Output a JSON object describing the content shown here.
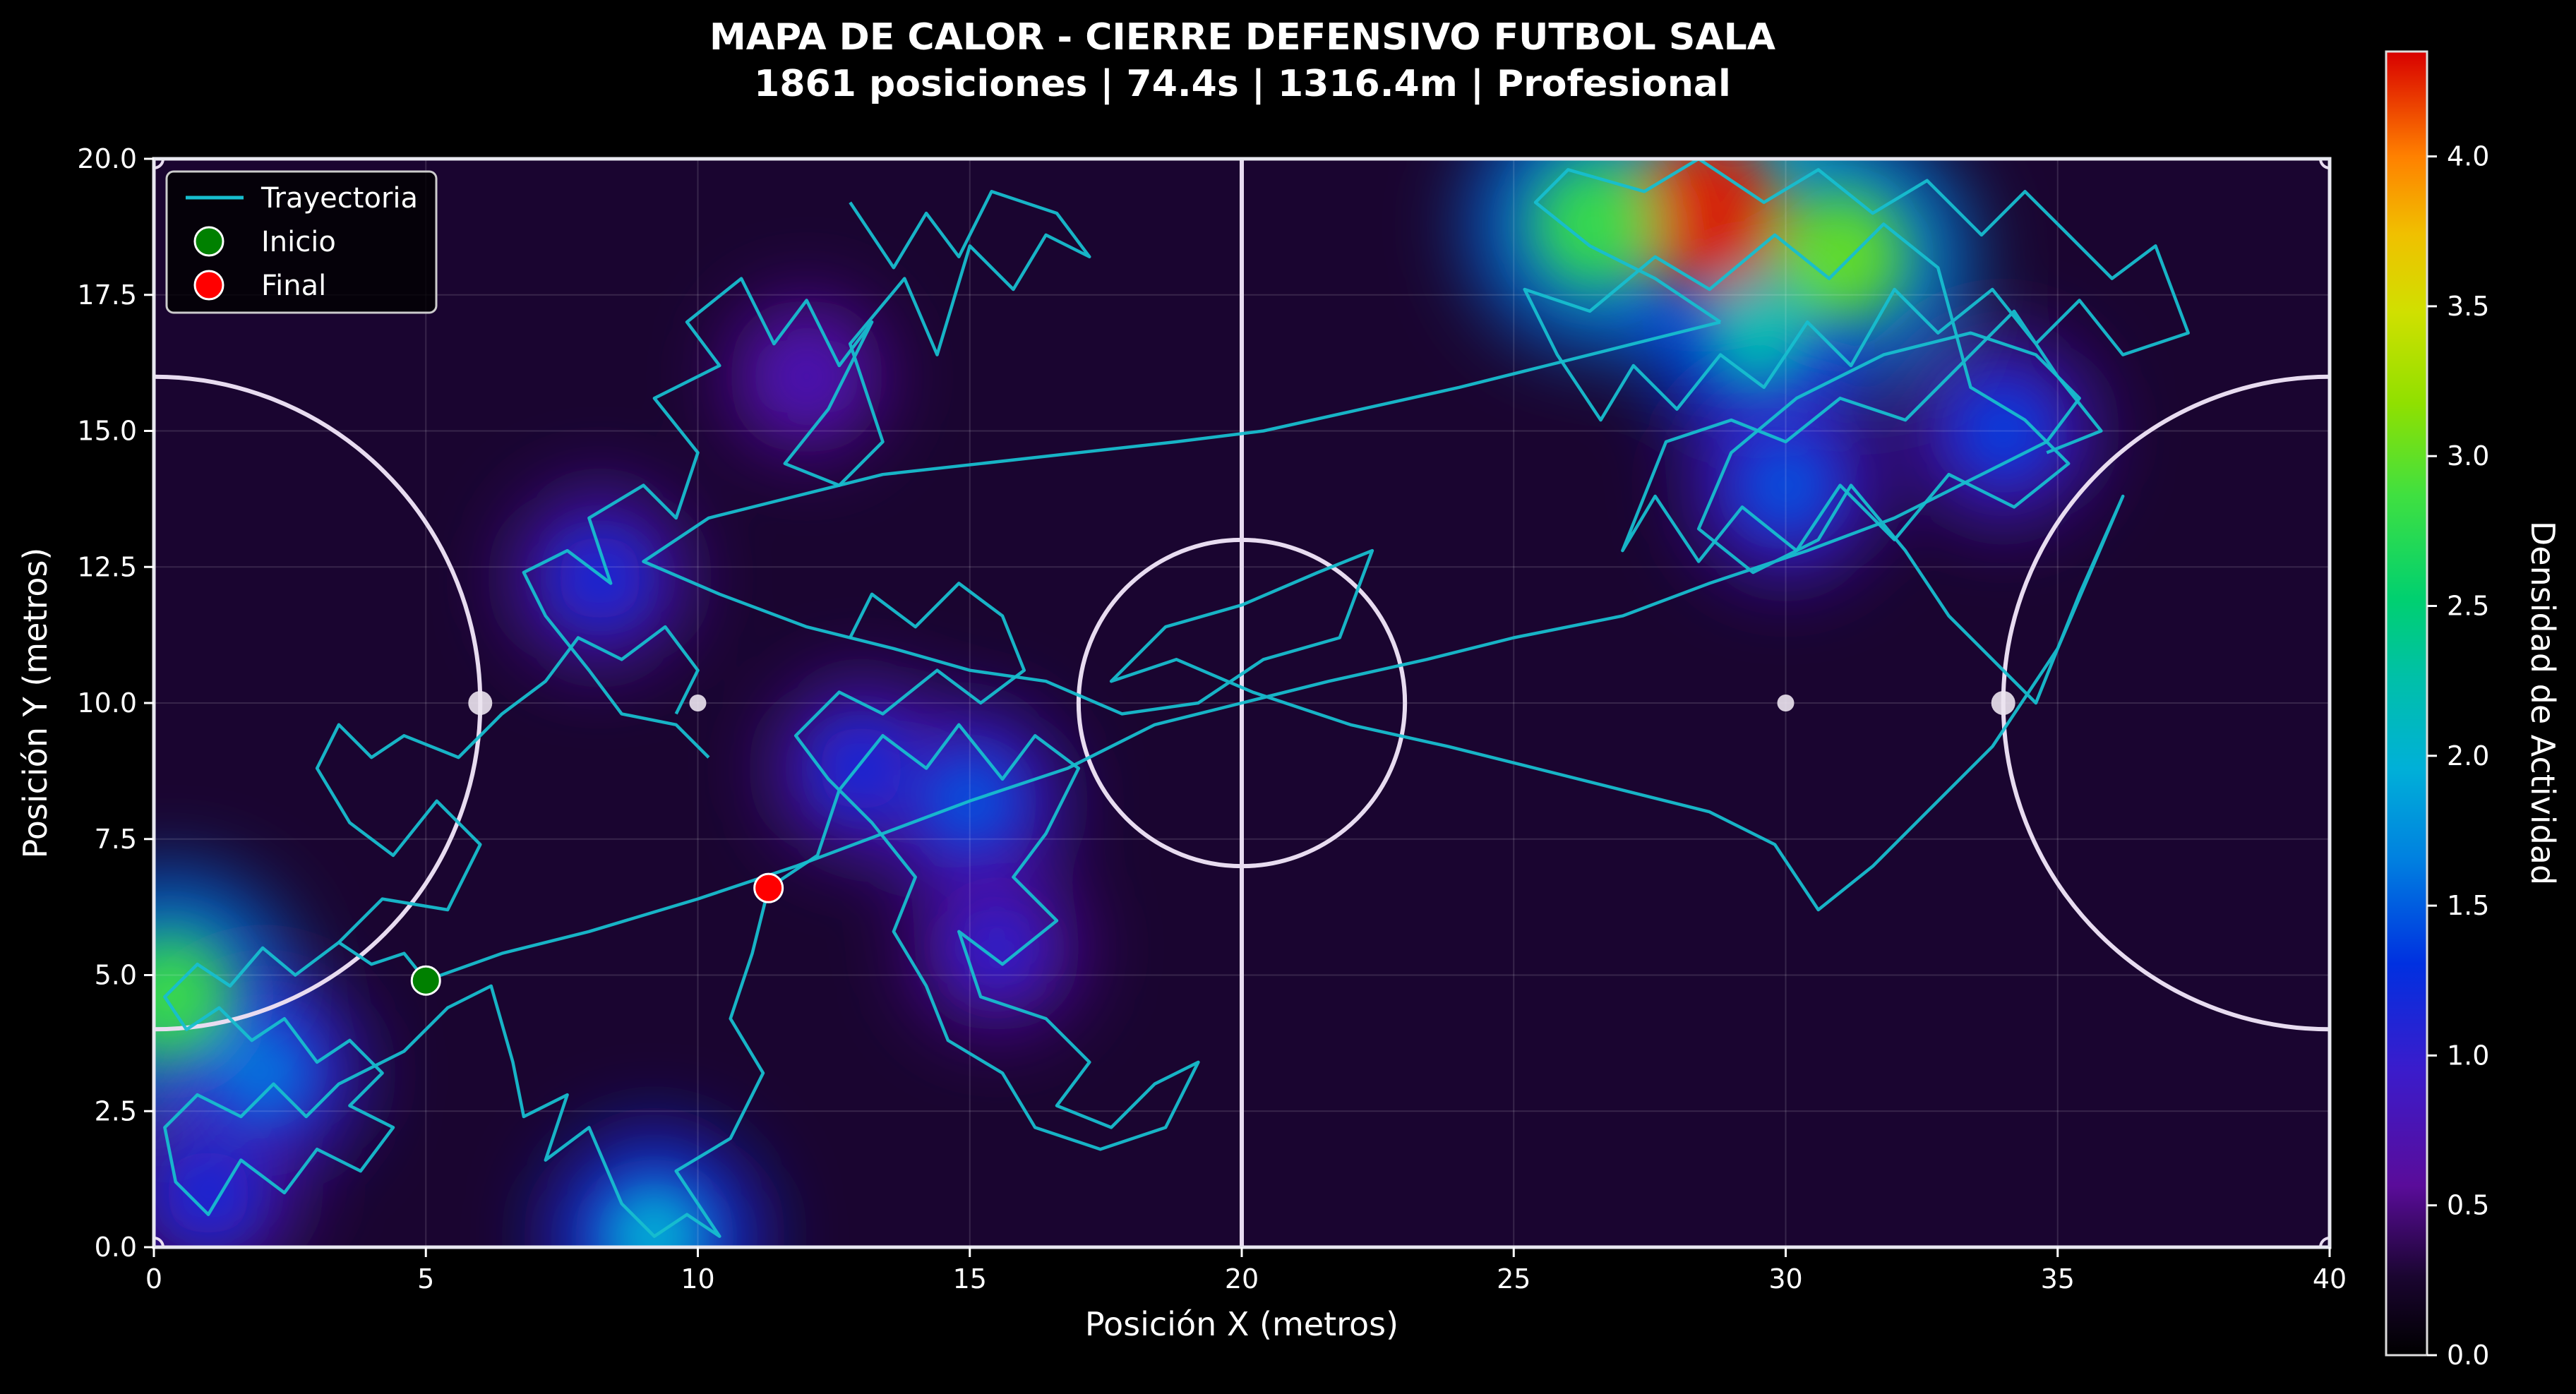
{
  "chart_data": {
    "type": "heatmap",
    "title": "MAPA DE CALOR - CIERRE DEFENSIVO FUTBOL SALA",
    "subtitle": "1861 posiciones | 74.4s | 1316.4m | Profesional",
    "xlabel": "Posición X (metros)",
    "ylabel": "Posición Y (metros)",
    "xlim": [
      0,
      40
    ],
    "ylim": [
      0,
      20
    ],
    "xticks": [
      "0",
      "5",
      "10",
      "15",
      "20",
      "25",
      "30",
      "35",
      "40"
    ],
    "yticks": [
      "0.0",
      "2.5",
      "5.0",
      "7.5",
      "10.0",
      "12.5",
      "15.0",
      "17.5",
      "20.0"
    ],
    "grid": true,
    "colormap": "nipy_spectral",
    "colorbar": {
      "label": "Densidad de Actividad",
      "range": [
        0,
        4.35
      ],
      "ticks": [
        "0.0",
        "0.5",
        "1.0",
        "1.5",
        "2.0",
        "2.5",
        "3.0",
        "3.5",
        "4.0"
      ]
    },
    "legend": {
      "placement": "upper-left",
      "entries": [
        {
          "label": "Trayectoria",
          "color": "#17becf",
          "marker": "line"
        },
        {
          "label": "Inicio",
          "color": "#008000",
          "marker": "circle"
        },
        {
          "label": "Final",
          "color": "#ff0000",
          "marker": "circle"
        }
      ]
    },
    "start_point": {
      "x": 5.0,
      "y": 4.9
    },
    "end_point": {
      "x": 11.3,
      "y": 6.6
    },
    "density_hotspots": [
      {
        "x": 28.5,
        "y": 19.0,
        "intensity": 4.3
      },
      {
        "x": 31.0,
        "y": 18.2,
        "intensity": 3.2
      },
      {
        "x": 26.5,
        "y": 18.8,
        "intensity": 3.0
      },
      {
        "x": 29.5,
        "y": 16.8,
        "intensity": 2.3
      },
      {
        "x": 30.0,
        "y": 14.0,
        "intensity": 1.5
      },
      {
        "x": 34.0,
        "y": 15.0,
        "intensity": 1.4
      },
      {
        "x": 0.3,
        "y": 4.6,
        "intensity": 3.0
      },
      {
        "x": 2.0,
        "y": 3.2,
        "intensity": 1.7
      },
      {
        "x": 1.0,
        "y": 1.0,
        "intensity": 1.2
      },
      {
        "x": 15.0,
        "y": 8.2,
        "intensity": 1.5
      },
      {
        "x": 13.0,
        "y": 8.8,
        "intensity": 1.2
      },
      {
        "x": 15.5,
        "y": 5.5,
        "intensity": 1.0
      },
      {
        "x": 9.2,
        "y": 0.2,
        "intensity": 2.1
      },
      {
        "x": 8.2,
        "y": 12.3,
        "intensity": 1.2
      },
      {
        "x": 12.0,
        "y": 16.0,
        "intensity": 0.7
      }
    ],
    "trajectory": [
      [
        5.0,
        4.9
      ],
      [
        4.6,
        5.4
      ],
      [
        4.0,
        5.2
      ],
      [
        3.4,
        5.6
      ],
      [
        2.6,
        5.0
      ],
      [
        2.0,
        5.5
      ],
      [
        1.4,
        4.8
      ],
      [
        0.8,
        5.2
      ],
      [
        0.2,
        4.6
      ],
      [
        0.6,
        4.0
      ],
      [
        1.2,
        4.4
      ],
      [
        1.8,
        3.8
      ],
      [
        2.4,
        4.2
      ],
      [
        3.0,
        3.4
      ],
      [
        3.6,
        3.8
      ],
      [
        4.2,
        3.2
      ],
      [
        3.6,
        2.6
      ],
      [
        4.4,
        2.2
      ],
      [
        3.8,
        1.4
      ],
      [
        3.0,
        1.8
      ],
      [
        2.4,
        1.0
      ],
      [
        1.6,
        1.6
      ],
      [
        1.0,
        0.6
      ],
      [
        0.4,
        1.2
      ],
      [
        0.2,
        2.2
      ],
      [
        0.8,
        2.8
      ],
      [
        1.6,
        2.4
      ],
      [
        2.2,
        3.0
      ],
      [
        2.8,
        2.4
      ],
      [
        3.4,
        3.0
      ],
      [
        4.6,
        3.6
      ],
      [
        5.4,
        4.4
      ],
      [
        6.2,
        4.8
      ],
      [
        6.6,
        3.4
      ],
      [
        6.8,
        2.4
      ],
      [
        7.6,
        2.8
      ],
      [
        7.2,
        1.6
      ],
      [
        8.0,
        2.2
      ],
      [
        8.6,
        0.8
      ],
      [
        9.2,
        0.2
      ],
      [
        9.8,
        0.6
      ],
      [
        10.4,
        0.2
      ],
      [
        9.6,
        1.4
      ],
      [
        10.6,
        2.0
      ],
      [
        11.2,
        3.2
      ],
      [
        10.6,
        4.2
      ],
      [
        11.0,
        5.4
      ],
      [
        11.3,
        6.6
      ]
    ],
    "trajectory_upper_left": [
      [
        10.2,
        9.0
      ],
      [
        9.6,
        9.6
      ],
      [
        8.6,
        9.8
      ],
      [
        8.0,
        10.6
      ],
      [
        7.2,
        11.6
      ],
      [
        6.8,
        12.4
      ],
      [
        7.6,
        12.8
      ],
      [
        8.4,
        12.2
      ],
      [
        8.0,
        13.4
      ],
      [
        9.0,
        14.0
      ],
      [
        9.6,
        13.4
      ],
      [
        10.0,
        14.6
      ],
      [
        9.2,
        15.6
      ],
      [
        10.4,
        16.2
      ],
      [
        9.8,
        17.0
      ],
      [
        10.8,
        17.8
      ],
      [
        11.4,
        16.6
      ],
      [
        12.0,
        17.4
      ],
      [
        12.6,
        16.2
      ],
      [
        13.2,
        17.0
      ],
      [
        12.4,
        15.4
      ],
      [
        11.6,
        14.4
      ],
      [
        12.6,
        14.0
      ],
      [
        13.4,
        14.8
      ],
      [
        12.8,
        16.6
      ],
      [
        13.8,
        17.8
      ],
      [
        14.4,
        16.4
      ],
      [
        15.0,
        18.4
      ],
      [
        15.8,
        17.6
      ],
      [
        16.4,
        18.6
      ],
      [
        17.2,
        18.2
      ],
      [
        16.6,
        19.0
      ],
      [
        15.4,
        19.4
      ],
      [
        14.8,
        18.2
      ],
      [
        14.2,
        19.0
      ],
      [
        13.6,
        18.0
      ],
      [
        12.8,
        19.2
      ]
    ],
    "trajectory_center": [
      [
        11.3,
        6.6
      ],
      [
        12.2,
        7.2
      ],
      [
        12.6,
        8.4
      ],
      [
        13.4,
        9.4
      ],
      [
        14.2,
        8.8
      ],
      [
        14.8,
        9.6
      ],
      [
        15.6,
        8.6
      ],
      [
        16.2,
        9.4
      ],
      [
        17.0,
        8.8
      ],
      [
        16.4,
        7.6
      ],
      [
        15.8,
        6.8
      ],
      [
        16.6,
        6.0
      ],
      [
        15.6,
        5.2
      ],
      [
        14.8,
        5.8
      ],
      [
        15.2,
        4.6
      ],
      [
        16.4,
        4.2
      ],
      [
        17.2,
        3.4
      ],
      [
        16.6,
        2.6
      ],
      [
        17.6,
        2.2
      ],
      [
        18.4,
        3.0
      ],
      [
        19.2,
        3.4
      ],
      [
        18.6,
        2.2
      ],
      [
        17.4,
        1.8
      ],
      [
        16.2,
        2.2
      ],
      [
        15.6,
        3.2
      ],
      [
        14.6,
        3.8
      ],
      [
        14.2,
        4.8
      ],
      [
        13.6,
        5.8
      ],
      [
        14.0,
        6.8
      ],
      [
        13.2,
        7.8
      ],
      [
        12.4,
        8.6
      ],
      [
        11.8,
        9.4
      ],
      [
        12.6,
        10.2
      ],
      [
        13.4,
        9.8
      ],
      [
        14.4,
        10.6
      ],
      [
        15.2,
        10.0
      ],
      [
        16.0,
        10.6
      ],
      [
        15.6,
        11.6
      ],
      [
        14.8,
        12.2
      ],
      [
        14.0,
        11.4
      ],
      [
        13.2,
        12.0
      ],
      [
        12.8,
        11.2
      ]
    ],
    "trajectory_crossing": [
      [
        5.0,
        4.9
      ],
      [
        6.4,
        5.4
      ],
      [
        8.0,
        5.8
      ],
      [
        10.0,
        6.4
      ],
      [
        11.8,
        7.0
      ],
      [
        13.4,
        7.6
      ],
      [
        15.0,
        8.2
      ],
      [
        16.8,
        8.8
      ],
      [
        18.4,
        9.6
      ],
      [
        20.0,
        10.0
      ],
      [
        21.6,
        10.4
      ],
      [
        23.4,
        10.8
      ],
      [
        25.0,
        11.2
      ],
      [
        27.0,
        11.6
      ],
      [
        28.6,
        12.2
      ],
      [
        30.4,
        12.8
      ],
      [
        32.0,
        13.4
      ],
      [
        33.6,
        14.2
      ],
      [
        34.8,
        14.8
      ],
      [
        35.4,
        15.6
      ],
      [
        34.6,
        16.4
      ],
      [
        33.4,
        16.8
      ],
      [
        31.8,
        16.4
      ],
      [
        30.2,
        15.6
      ],
      [
        29.0,
        14.6
      ],
      [
        28.4,
        13.2
      ],
      [
        29.4,
        12.4
      ],
      [
        30.6,
        13.0
      ],
      [
        31.2,
        14.0
      ],
      [
        32.2,
        12.8
      ],
      [
        33.0,
        11.6
      ],
      [
        33.8,
        10.8
      ],
      [
        34.6,
        10.0
      ],
      [
        35.4,
        12.0
      ],
      [
        36.2,
        13.8
      ],
      [
        35.0,
        11.0
      ],
      [
        33.8,
        9.2
      ],
      [
        32.6,
        8.0
      ],
      [
        31.6,
        7.0
      ],
      [
        30.6,
        6.2
      ],
      [
        29.8,
        7.4
      ],
      [
        28.6,
        8.0
      ],
      [
        27.0,
        8.4
      ],
      [
        25.4,
        8.8
      ],
      [
        23.8,
        9.2
      ],
      [
        22.0,
        9.6
      ],
      [
        20.2,
        10.2
      ],
      [
        18.8,
        10.8
      ],
      [
        17.6,
        10.4
      ],
      [
        18.6,
        11.4
      ],
      [
        20.0,
        11.8
      ],
      [
        21.4,
        12.4
      ],
      [
        22.4,
        12.8
      ],
      [
        21.8,
        11.2
      ],
      [
        20.4,
        10.8
      ],
      [
        19.2,
        10.0
      ],
      [
        17.8,
        9.8
      ],
      [
        16.4,
        10.4
      ],
      [
        15.0,
        10.6
      ],
      [
        13.6,
        11.0
      ],
      [
        12.0,
        11.4
      ],
      [
        10.4,
        12.0
      ],
      [
        9.0,
        12.6
      ],
      [
        10.2,
        13.4
      ],
      [
        11.8,
        13.8
      ],
      [
        13.4,
        14.2
      ],
      [
        15.2,
        14.4
      ],
      [
        17.0,
        14.6
      ],
      [
        18.8,
        14.8
      ],
      [
        20.4,
        15.0
      ],
      [
        22.2,
        15.4
      ],
      [
        24.0,
        15.8
      ],
      [
        25.6,
        16.2
      ],
      [
        27.2,
        16.6
      ],
      [
        28.8,
        17.0
      ]
    ],
    "trajectory_upper_right": [
      [
        28.8,
        17.0
      ],
      [
        27.6,
        17.8
      ],
      [
        26.4,
        18.4
      ],
      [
        25.4,
        19.2
      ],
      [
        26.0,
        19.8
      ],
      [
        27.4,
        19.4
      ],
      [
        28.4,
        20.0
      ],
      [
        29.6,
        19.2
      ],
      [
        30.6,
        19.8
      ],
      [
        31.6,
        19.0
      ],
      [
        32.6,
        19.6
      ],
      [
        33.6,
        18.6
      ],
      [
        34.4,
        19.4
      ],
      [
        35.2,
        18.6
      ],
      [
        36.0,
        17.8
      ],
      [
        36.8,
        18.4
      ],
      [
        37.4,
        16.8
      ],
      [
        36.2,
        16.4
      ],
      [
        35.4,
        17.4
      ],
      [
        34.6,
        16.6
      ],
      [
        33.8,
        17.6
      ],
      [
        32.8,
        16.8
      ],
      [
        32.0,
        17.6
      ],
      [
        31.2,
        16.2
      ],
      [
        30.4,
        17.0
      ],
      [
        29.6,
        15.8
      ],
      [
        28.8,
        16.4
      ],
      [
        28.0,
        15.4
      ],
      [
        27.2,
        16.2
      ],
      [
        26.6,
        15.2
      ],
      [
        25.8,
        16.4
      ],
      [
        25.2,
        17.6
      ],
      [
        26.4,
        17.2
      ],
      [
        27.6,
        18.2
      ],
      [
        28.6,
        17.6
      ],
      [
        29.8,
        18.6
      ],
      [
        30.8,
        17.8
      ],
      [
        31.8,
        18.8
      ],
      [
        32.8,
        18.0
      ],
      [
        33.4,
        15.8
      ],
      [
        34.4,
        15.2
      ],
      [
        35.2,
        14.4
      ],
      [
        34.2,
        13.6
      ],
      [
        33.0,
        14.2
      ],
      [
        32.0,
        13.0
      ],
      [
        31.0,
        14.0
      ],
      [
        30.2,
        12.8
      ],
      [
        29.2,
        13.6
      ],
      [
        28.4,
        12.6
      ],
      [
        27.6,
        13.8
      ],
      [
        27.0,
        12.8
      ],
      [
        27.8,
        14.8
      ],
      [
        29.0,
        15.2
      ],
      [
        30.0,
        14.8
      ],
      [
        31.0,
        15.6
      ],
      [
        32.2,
        15.2
      ],
      [
        33.2,
        16.2
      ],
      [
        34.2,
        17.2
      ],
      [
        35.0,
        16.0
      ],
      [
        35.8,
        15.0
      ],
      [
        34.8,
        14.6
      ]
    ],
    "trajectory_left_loop": [
      [
        3.4,
        5.6
      ],
      [
        4.2,
        6.4
      ],
      [
        5.4,
        6.2
      ],
      [
        6.0,
        7.4
      ],
      [
        5.2,
        8.2
      ],
      [
        4.4,
        7.2
      ],
      [
        3.6,
        7.8
      ],
      [
        3.0,
        8.8
      ],
      [
        3.4,
        9.6
      ],
      [
        4.0,
        9.0
      ],
      [
        4.6,
        9.4
      ],
      [
        5.6,
        9.0
      ],
      [
        6.4,
        9.8
      ],
      [
        7.2,
        10.4
      ],
      [
        7.8,
        11.2
      ],
      [
        8.6,
        10.8
      ],
      [
        9.4,
        11.4
      ],
      [
        10.0,
        10.6
      ],
      [
        9.6,
        9.8
      ]
    ]
  }
}
